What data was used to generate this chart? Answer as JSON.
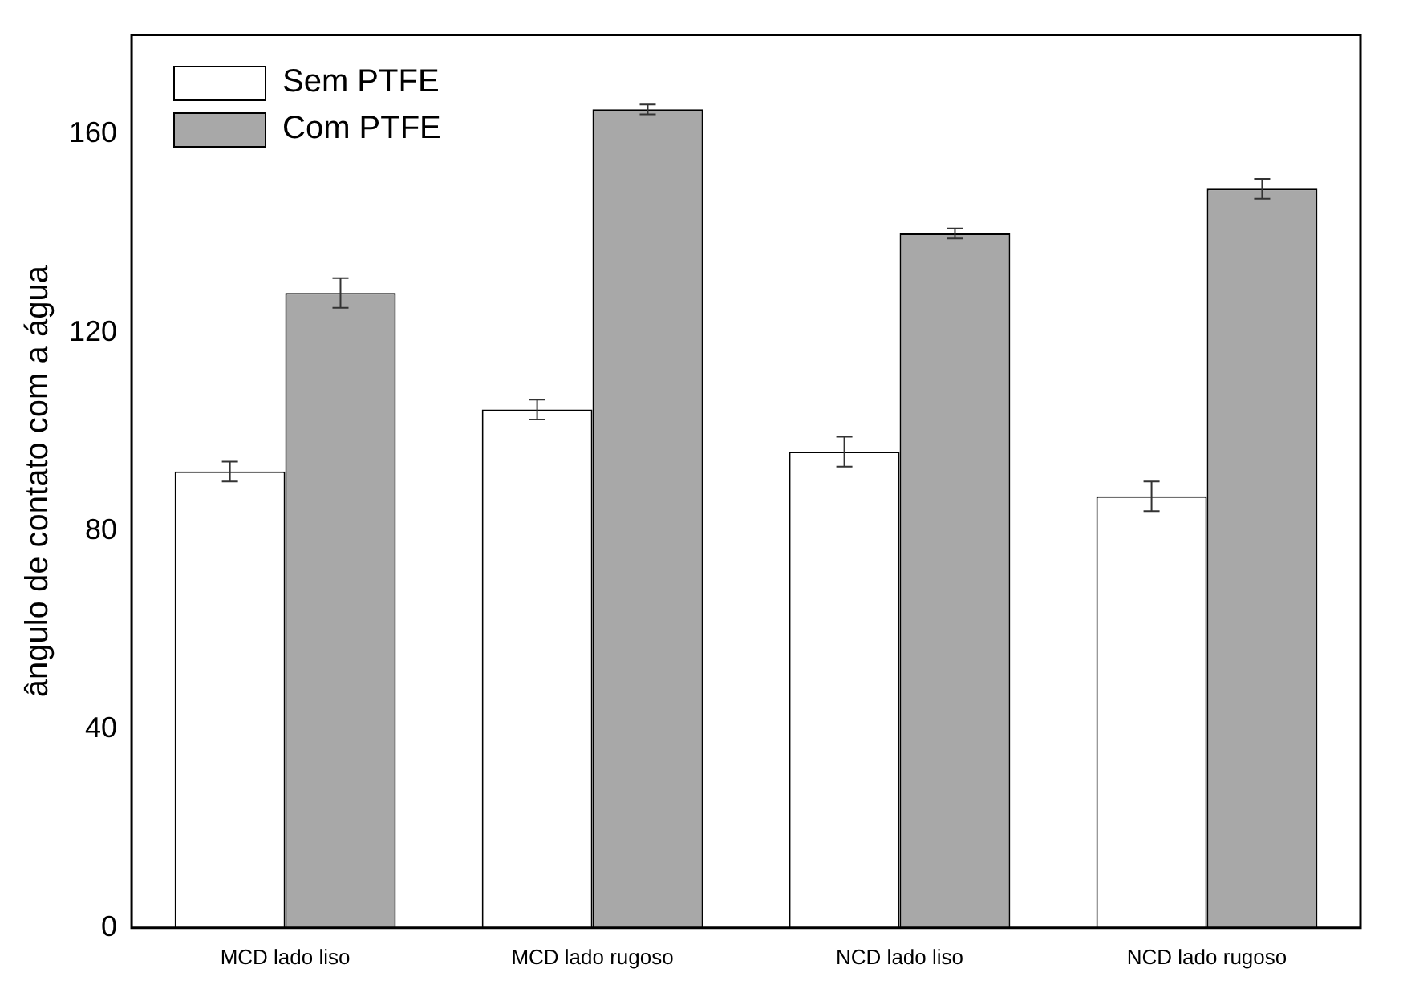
{
  "chart_data": {
    "type": "bar",
    "ylabel": "ângulo de contato com a água",
    "categories": [
      "MCD lado liso",
      "MCD lado rugoso",
      "NCD lado liso",
      "NCD lado rugoso"
    ],
    "series": [
      {
        "name": "Sem PTFE",
        "color": "#ffffff",
        "values": [
          92,
          104.5,
          96,
          87
        ],
        "errors": [
          2,
          2,
          3,
          3
        ]
      },
      {
        "name": "Com PTFE",
        "color": "#a8a8a8",
        "values": [
          128,
          165,
          140,
          149
        ],
        "errors": [
          3,
          1,
          1,
          2
        ]
      }
    ],
    "ylim": [
      0,
      180
    ],
    "yticks": [
      0,
      40,
      80,
      120,
      160
    ],
    "grid": false,
    "legend": "top left"
  }
}
